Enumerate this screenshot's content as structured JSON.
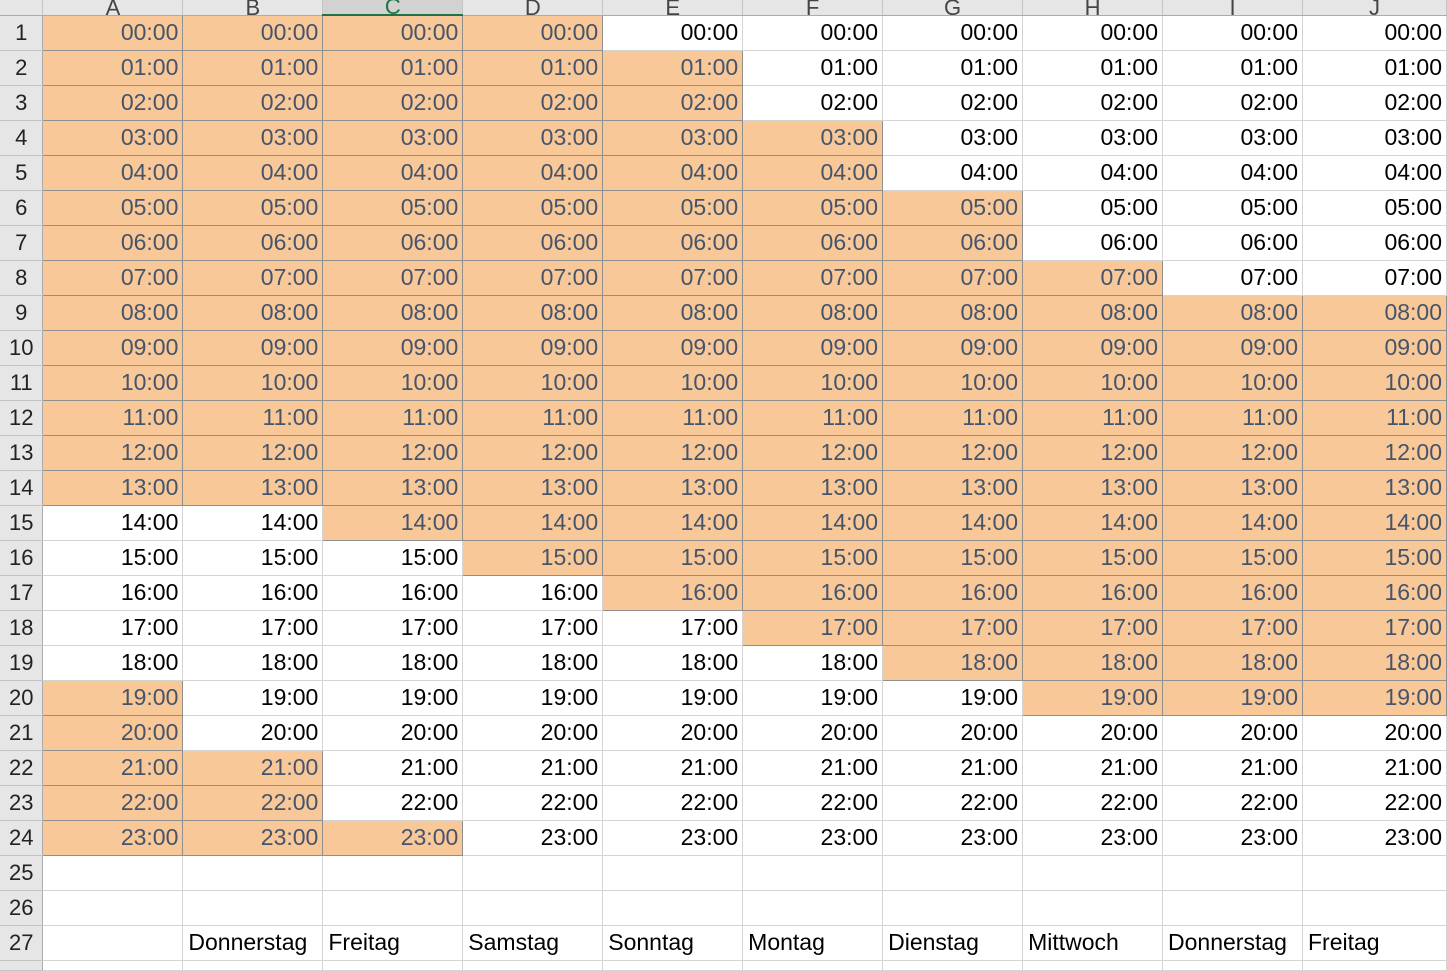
{
  "columns": [
    "A",
    "B",
    "C",
    "D",
    "E",
    "F",
    "G",
    "H",
    "I",
    "J"
  ],
  "selected_column": "C",
  "times": [
    "00:00",
    "01:00",
    "02:00",
    "03:00",
    "04:00",
    "05:00",
    "06:00",
    "07:00",
    "08:00",
    "09:00",
    "10:00",
    "11:00",
    "12:00",
    "13:00",
    "14:00",
    "15:00",
    "16:00",
    "17:00",
    "18:00",
    "19:00",
    "20:00",
    "21:00",
    "22:00",
    "23:00"
  ],
  "highlighted_rows_by_column": {
    "A": [
      1,
      2,
      3,
      4,
      5,
      6,
      7,
      8,
      9,
      10,
      11,
      12,
      13,
      14,
      20,
      21,
      22,
      23,
      24
    ],
    "B": [
      1,
      2,
      3,
      4,
      5,
      6,
      7,
      8,
      9,
      10,
      11,
      12,
      13,
      14,
      22,
      23,
      24
    ],
    "C": [
      1,
      2,
      3,
      4,
      5,
      6,
      7,
      8,
      9,
      10,
      11,
      12,
      13,
      14,
      15,
      24
    ],
    "D": [
      1,
      2,
      3,
      4,
      5,
      6,
      7,
      8,
      9,
      10,
      11,
      12,
      13,
      14,
      15,
      16
    ],
    "E": [
      2,
      3,
      4,
      5,
      6,
      7,
      8,
      9,
      10,
      11,
      12,
      13,
      14,
      15,
      16,
      17
    ],
    "F": [
      4,
      5,
      6,
      7,
      8,
      9,
      10,
      11,
      12,
      13,
      14,
      15,
      16,
      17,
      18
    ],
    "G": [
      6,
      7,
      8,
      9,
      10,
      11,
      12,
      13,
      14,
      15,
      16,
      17,
      18,
      19
    ],
    "H": [
      8,
      9,
      10,
      11,
      12,
      13,
      14,
      15,
      16,
      17,
      18,
      19,
      20
    ],
    "I": [
      9,
      10,
      11,
      12,
      13,
      14,
      15,
      16,
      17,
      18,
      19,
      20
    ],
    "J": [
      9,
      10,
      11,
      12,
      13,
      14,
      15,
      16,
      17,
      18,
      19,
      20
    ]
  },
  "row_numbers": [
    "1",
    "2",
    "3",
    "4",
    "5",
    "6",
    "7",
    "8",
    "9",
    "10",
    "11",
    "12",
    "13",
    "14",
    "15",
    "16",
    "17",
    "18",
    "19",
    "20",
    "21",
    "22",
    "23",
    "24",
    "25",
    "26",
    "27"
  ],
  "day_labels": [
    "",
    "Donnerstag",
    "Freitag",
    "Samstag",
    "Sonntag",
    "Montag",
    "Dienstag",
    "Mittwoch",
    "Donnerstag",
    "Freitag"
  ],
  "colors": {
    "highlight_fill": "#f9c899",
    "highlight_text": "#44546a",
    "selected_header_accent": "#217346"
  }
}
